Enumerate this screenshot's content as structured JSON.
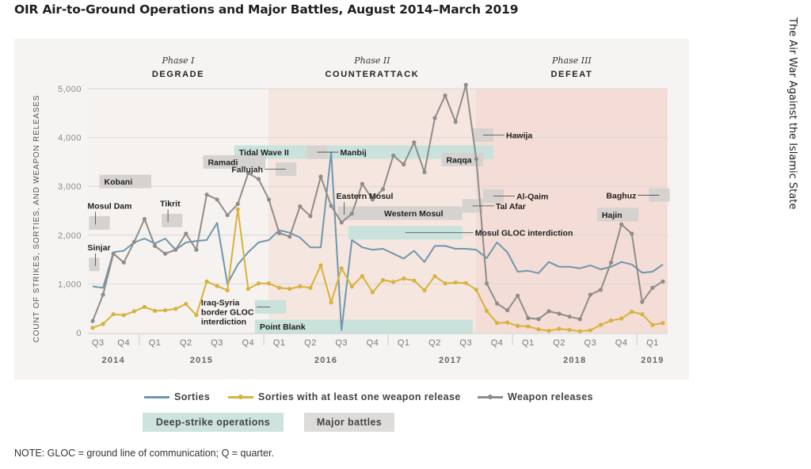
{
  "page": {
    "title": "OIR Air-to-Ground Operations and Major Battles, August 2014–March 2019",
    "running_head": "The Air War Against the Islamic State",
    "note": "NOTE: GLOC = ground line of communication; Q = quarter."
  },
  "chart_data": {
    "type": "line",
    "title": "OIR Air-to-Ground Operations and Major Battles, August 2014–March 2019",
    "ylabel": "COUNT OF STRIKES, SORTIES, AND WEAPON RELEASES",
    "xlabel": "",
    "ylim": [
      0,
      5000
    ],
    "yticks": [
      0,
      1000,
      2000,
      3000,
      4000,
      5000
    ],
    "ytick_labels": [
      "0",
      "1,000",
      "2,000",
      "3,000",
      "4,000",
      "5,000"
    ],
    "grid": true,
    "x": [
      "2014-08",
      "2014-09",
      "2014-10",
      "2014-11",
      "2014-12",
      "2015-01",
      "2015-02",
      "2015-03",
      "2015-04",
      "2015-05",
      "2015-06",
      "2015-07",
      "2015-08",
      "2015-09",
      "2015-10",
      "2015-11",
      "2015-12",
      "2016-01",
      "2016-02",
      "2016-03",
      "2016-04",
      "2016-05",
      "2016-06",
      "2016-07",
      "2016-08",
      "2016-09",
      "2016-10",
      "2016-11",
      "2016-12",
      "2017-01",
      "2017-02",
      "2017-03",
      "2017-04",
      "2017-05",
      "2017-06",
      "2017-07",
      "2017-08",
      "2017-09",
      "2017-10",
      "2017-11",
      "2017-12",
      "2018-01",
      "2018-02",
      "2018-03",
      "2018-04",
      "2018-05",
      "2018-06",
      "2018-07",
      "2018-08",
      "2018-09",
      "2018-10",
      "2018-11",
      "2018-12",
      "2019-01",
      "2019-02",
      "2019-03"
    ],
    "quarter_ticks": [
      {
        "label": "Q3",
        "year": "2014"
      },
      {
        "label": "Q4",
        "year": "2014"
      },
      {
        "label": "Q1",
        "year": "2015"
      },
      {
        "label": "Q2",
        "year": "2015"
      },
      {
        "label": "Q3",
        "year": "2015"
      },
      {
        "label": "Q4",
        "year": "2015"
      },
      {
        "label": "Q1",
        "year": "2016"
      },
      {
        "label": "Q2",
        "year": "2016"
      },
      {
        "label": "Q3",
        "year": "2016"
      },
      {
        "label": "Q4",
        "year": "2016"
      },
      {
        "label": "Q1",
        "year": "2017"
      },
      {
        "label": "Q2",
        "year": "2017"
      },
      {
        "label": "Q3",
        "year": "2017"
      },
      {
        "label": "Q4",
        "year": "2017"
      },
      {
        "label": "Q1",
        "year": "2018"
      },
      {
        "label": "Q2",
        "year": "2018"
      },
      {
        "label": "Q3",
        "year": "2018"
      },
      {
        "label": "Q4",
        "year": "2018"
      },
      {
        "label": "Q1",
        "year": "2019"
      }
    ],
    "years": [
      "2014",
      "2015",
      "2016",
      "2017",
      "2018",
      "2019"
    ],
    "series": [
      {
        "name": "Sorties",
        "color": "#6f97ad",
        "markers": false,
        "values": [
          950,
          920,
          1650,
          1680,
          1850,
          1930,
          1830,
          1930,
          1700,
          1850,
          1880,
          1900,
          2250,
          1000,
          1400,
          1650,
          1850,
          1900,
          2100,
          2050,
          1950,
          1750,
          1750,
          3700,
          50,
          1900,
          1750,
          1700,
          1720,
          1620,
          1520,
          1680,
          1450,
          1780,
          1780,
          1720,
          1720,
          1700,
          1530,
          1850,
          1650,
          1250,
          1270,
          1220,
          1450,
          1350,
          1350,
          1320,
          1380,
          1300,
          1350,
          1450,
          1400,
          1230,
          1250,
          1400
        ]
      },
      {
        "name": "Sorties with at least one weapon release",
        "color": "#d9b13c",
        "markers": true,
        "values": [
          100,
          180,
          380,
          360,
          440,
          530,
          450,
          460,
          490,
          590,
          360,
          1050,
          960,
          870,
          2530,
          900,
          1010,
          1010,
          920,
          900,
          950,
          920,
          1380,
          620,
          1320,
          950,
          1160,
          830,
          1080,
          1040,
          1110,
          1070,
          870,
          1160,
          1010,
          1030,
          1020,
          880,
          450,
          200,
          210,
          140,
          130,
          70,
          40,
          80,
          60,
          30,
          50,
          160,
          250,
          290,
          430,
          380,
          160,
          200
        ]
      },
      {
        "name": "Weapon releases",
        "color": "#8f8c89",
        "markers": true,
        "values": [
          240,
          780,
          1620,
          1440,
          1860,
          2330,
          1780,
          1620,
          1700,
          2030,
          1700,
          2830,
          2730,
          2410,
          2640,
          3270,
          3150,
          2730,
          2040,
          1970,
          2590,
          2390,
          3200,
          2600,
          2260,
          2440,
          3050,
          2730,
          2940,
          3630,
          3450,
          3900,
          3290,
          4400,
          4860,
          4320,
          5080,
          3560,
          1010,
          600,
          460,
          760,
          300,
          280,
          440,
          390,
          330,
          280,
          780,
          880,
          1440,
          2220,
          2030,
          630,
          920,
          1050
        ]
      }
    ],
    "phases": [
      {
        "name": "Phase I",
        "label": "DEGRADE",
        "start": "2014-08",
        "end": "2016-01",
        "shade": "#f5f2f0"
      },
      {
        "name": "Phase II",
        "label": "COUNTERATTACK",
        "start": "2016-01",
        "end": "2017-09",
        "shade": "#f5e6e0"
      },
      {
        "name": "Phase III",
        "label": "DEFEAT",
        "start": "2017-09",
        "end": "2019-03",
        "shade": "#f3ddd6"
      }
    ],
    "deep_strike_operations": [
      {
        "label": "Tidal Wave II",
        "start": "2015-10",
        "end": "2017-10",
        "y": 3700,
        "label_side": "inside-left"
      },
      {
        "label": "Iraq-Syria border GLOC interdiction",
        "start": "2015-12",
        "end": "2016-02",
        "y": 530,
        "label_side": "left"
      },
      {
        "label": "Point Blank",
        "start": "2015-12",
        "end": "2017-08",
        "y": 130,
        "label_side": "inside-left"
      },
      {
        "label": "Mosul GLOC interdiction",
        "start": "2016-09",
        "end": "2017-07",
        "y": 2050,
        "label_side": "right"
      }
    ],
    "major_battles": [
      {
        "label": "Sinjar",
        "start": "2014-08",
        "end": "2014-08",
        "y": 1400,
        "label_side": "above"
      },
      {
        "label": "Mosul Dam",
        "start": "2014-08",
        "end": "2014-09",
        "y": 2250,
        "label_side": "above"
      },
      {
        "label": "Kobani",
        "start": "2014-09",
        "end": "2015-01",
        "y": 3100,
        "label_side": "inside-left"
      },
      {
        "label": "Tikrit",
        "start": "2015-03",
        "end": "2015-04",
        "y": 2300,
        "label_side": "above"
      },
      {
        "label": "Ramadi",
        "start": "2015-07",
        "end": "2015-12",
        "y": 3500,
        "label_side": "inside-left"
      },
      {
        "label": "Fallujah",
        "start": "2016-02",
        "end": "2016-03",
        "y": 3350,
        "label_side": "left"
      },
      {
        "label": "Manbij",
        "start": "2016-05",
        "end": "2016-06",
        "y": 3700,
        "label_side": "right"
      },
      {
        "label": "Eastern Mosul",
        "start": "2016-08",
        "end": "2016-12",
        "y": 2450,
        "label_side": "above"
      },
      {
        "label": "Western Mosul",
        "start": "2016-12",
        "end": "2017-07",
        "y": 2450,
        "label_side": "inside-left"
      },
      {
        "label": "Raqqa",
        "start": "2017-06",
        "end": "2017-09",
        "y": 3550,
        "label_side": "inside-left"
      },
      {
        "label": "Tal Afar",
        "start": "2017-08",
        "end": "2017-09",
        "y": 2600,
        "label_side": "right"
      },
      {
        "label": "Hawija",
        "start": "2017-09",
        "end": "2017-10",
        "y": 4050,
        "label_side": "right"
      },
      {
        "label": "Al-Qaim",
        "start": "2017-10",
        "end": "2017-11",
        "y": 2800,
        "label_side": "right"
      },
      {
        "label": "Hajin",
        "start": "2018-09",
        "end": "2018-12",
        "y": 2420,
        "label_side": "inside-left"
      },
      {
        "label": "Baghuz",
        "start": "2019-02",
        "end": "2019-03",
        "y": 2820,
        "label_side": "left"
      }
    ],
    "legend": {
      "placement": "bottom",
      "lines": [
        "Sorties",
        "Sorties with at least one weapon release",
        "Weapon releases"
      ],
      "boxes": [
        {
          "label": "Deep-strike operations",
          "color": "#cde3de"
        },
        {
          "label": "Major battles",
          "color": "#dedcdb"
        }
      ]
    }
  },
  "colors": {
    "deep_strike": "#c9e2dc",
    "major_battle": "#d6d2d0",
    "grid": "#dcd8d5",
    "axis_text": "#8a8a8a"
  }
}
